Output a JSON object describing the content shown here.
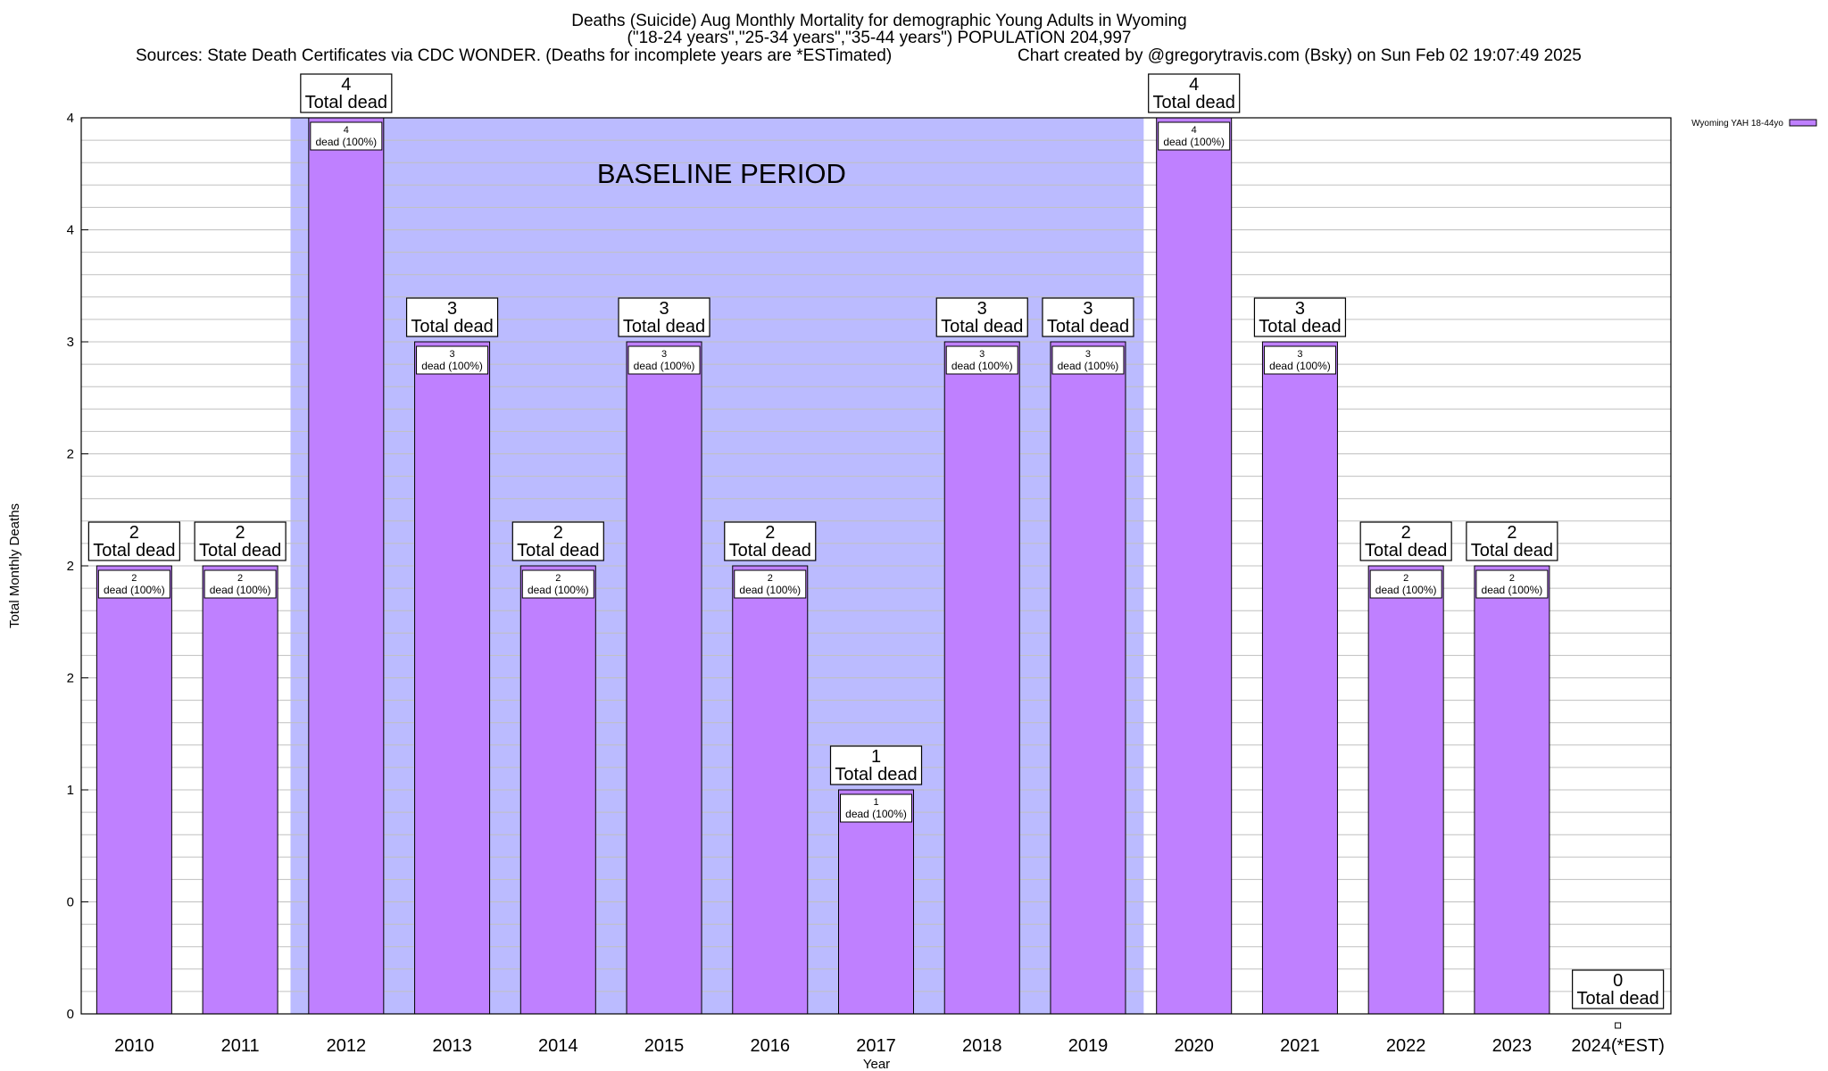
{
  "title": {
    "line1": "Deaths (Suicide) Aug Monthly Mortality for demographic Young Adults in Wyoming",
    "line2": "(\"18-24 years\",\"25-34 years\",\"35-44 years\") POPULATION 204,997",
    "line3_left": "Sources: State Death Certificates via CDC WONDER. (Deaths for incomplete years are *ESTimated)",
    "line3_right": "Chart created by @gregorytravis.com (Bsky) on Sun Feb 02 19:07:49 2025"
  },
  "colors": {
    "bar": "#bf80ff",
    "bar_edge": "#000000",
    "baseline": "#bbbbff",
    "grid": "#c0c0c0"
  },
  "chart_data": {
    "type": "bar",
    "title": "Deaths (Suicide) Aug Monthly Mortality for demographic Young Adults in Wyoming",
    "xlabel": "Year",
    "ylabel": "Total Monthly Deaths",
    "categories": [
      "2010",
      "2011",
      "2012",
      "2013",
      "2014",
      "2015",
      "2016",
      "2017",
      "2018",
      "2019",
      "2020",
      "2021",
      "2022",
      "2023",
      "2024(*EST)"
    ],
    "series": [
      {
        "name": "Wyoming YAH 18-44yo",
        "values": [
          2,
          2,
          4,
          3,
          2,
          3,
          2,
          1,
          3,
          3,
          4,
          3,
          2,
          2,
          0
        ]
      }
    ],
    "ylim": [
      0,
      4
    ],
    "yticks": [
      {
        "value": 0,
        "label": "0"
      },
      {
        "value": 0.5,
        "label": "0"
      },
      {
        "value": 1,
        "label": "1"
      },
      {
        "value": 1.5,
        "label": "2"
      },
      {
        "value": 2,
        "label": "2"
      },
      {
        "value": 2.5,
        "label": "2"
      },
      {
        "value": 3,
        "label": "3"
      },
      {
        "value": 3.5,
        "label": "4"
      },
      {
        "value": 4,
        "label": "4"
      }
    ],
    "total_labels": [
      {
        "count": "2",
        "text": "Total dead"
      },
      {
        "count": "2",
        "text": "Total dead"
      },
      {
        "count": "4",
        "text": "Total dead"
      },
      {
        "count": "3",
        "text": "Total dead"
      },
      {
        "count": "2",
        "text": "Total dead"
      },
      {
        "count": "3",
        "text": "Total dead"
      },
      {
        "count": "2",
        "text": "Total dead"
      },
      {
        "count": "1",
        "text": "Total dead"
      },
      {
        "count": "3",
        "text": "Total dead"
      },
      {
        "count": "3",
        "text": "Total dead"
      },
      {
        "count": "4",
        "text": "Total dead"
      },
      {
        "count": "3",
        "text": "Total dead"
      },
      {
        "count": "2",
        "text": "Total dead"
      },
      {
        "count": "2",
        "text": "Total dead"
      },
      {
        "count": "0",
        "text": "Total dead"
      }
    ],
    "bar_labels": [
      {
        "count": "2",
        "text": "dead (100%)"
      },
      {
        "count": "2",
        "text": "dead (100%)"
      },
      {
        "count": "4",
        "text": "dead (100%)"
      },
      {
        "count": "3",
        "text": "dead (100%)"
      },
      {
        "count": "2",
        "text": "dead (100%)"
      },
      {
        "count": "3",
        "text": "dead (100%)"
      },
      {
        "count": "2",
        "text": "dead (100%)"
      },
      {
        "count": "1",
        "text": "dead (100%)"
      },
      {
        "count": "3",
        "text": "dead (100%)"
      },
      {
        "count": "3",
        "text": "dead (100%)"
      },
      {
        "count": "4",
        "text": "dead (100%)"
      },
      {
        "count": "3",
        "text": "dead (100%)"
      },
      {
        "count": "2",
        "text": "dead (100%)"
      },
      {
        "count": "2",
        "text": "dead (100%)"
      },
      null
    ],
    "baseline_period": {
      "label": "BASELINE PERIOD",
      "start": "2012",
      "end": "2019"
    },
    "grid": true,
    "legend": "top-right"
  }
}
